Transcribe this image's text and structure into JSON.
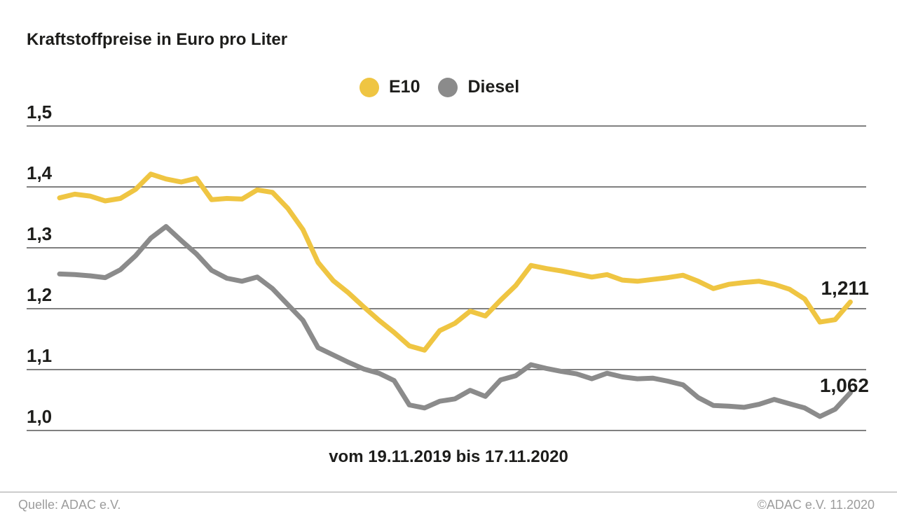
{
  "title": "Kraftstoffpreise in Euro pro Liter",
  "legend": {
    "items": [
      {
        "label": "E10",
        "color": "#EFC542"
      },
      {
        "label": "Diesel",
        "color": "#8B8B8B"
      }
    ]
  },
  "chart_data": {
    "type": "line",
    "title": "Kraftstoffpreise in Euro pro Liter",
    "xlabel": "vom 19.11.2019 bis 17.11.2020",
    "ylabel": "Euro pro Liter",
    "x_start": "19.11.2019",
    "x_end": "17.11.2020",
    "x_interval": "weekly",
    "ylim": [
      1.0,
      1.5
    ],
    "grid": "horizontal",
    "legend_position": "top-center",
    "y_ticks": [
      {
        "label": "1,5",
        "value": 1.5
      },
      {
        "label": "1,4",
        "value": 1.4
      },
      {
        "label": "1,3",
        "value": 1.3
      },
      {
        "label": "1,2",
        "value": 1.2
      },
      {
        "label": "1,1",
        "value": 1.1
      },
      {
        "label": "1,0",
        "value": 1.0
      }
    ],
    "series": [
      {
        "name": "E10",
        "color": "#EFC542",
        "end_label": "1,211",
        "end_value": 1.211,
        "values": [
          1.382,
          1.388,
          1.385,
          1.377,
          1.381,
          1.396,
          1.421,
          1.413,
          1.408,
          1.414,
          1.379,
          1.381,
          1.38,
          1.395,
          1.391,
          1.365,
          1.33,
          1.276,
          1.246,
          1.226,
          1.203,
          1.181,
          1.161,
          1.139,
          1.132,
          1.164,
          1.176,
          1.196,
          1.188,
          1.214,
          1.238,
          1.271,
          1.266,
          1.262,
          1.257,
          1.252,
          1.256,
          1.247,
          1.245,
          1.248,
          1.251,
          1.255,
          1.245,
          1.233,
          1.24,
          1.243,
          1.245,
          1.24,
          1.232,
          1.216,
          1.178,
          1.182,
          1.211
        ]
      },
      {
        "name": "Diesel",
        "color": "#8B8B8B",
        "end_label": "1,062",
        "end_value": 1.062,
        "values": [
          1.257,
          1.256,
          1.254,
          1.251,
          1.264,
          1.287,
          1.316,
          1.335,
          1.312,
          1.29,
          1.263,
          1.25,
          1.245,
          1.252,
          1.233,
          1.207,
          1.181,
          1.136,
          1.124,
          1.112,
          1.101,
          1.094,
          1.082,
          1.042,
          1.037,
          1.048,
          1.052,
          1.066,
          1.056,
          1.083,
          1.09,
          1.108,
          1.102,
          1.097,
          1.093,
          1.085,
          1.094,
          1.088,
          1.085,
          1.086,
          1.081,
          1.075,
          1.054,
          1.041,
          1.04,
          1.038,
          1.043,
          1.051,
          1.044,
          1.037,
          1.023,
          1.035,
          1.062
        ]
      }
    ]
  },
  "footer": {
    "source": "Quelle: ADAC e.V.",
    "copyright": "©ADAC e.V. 11.2020"
  }
}
